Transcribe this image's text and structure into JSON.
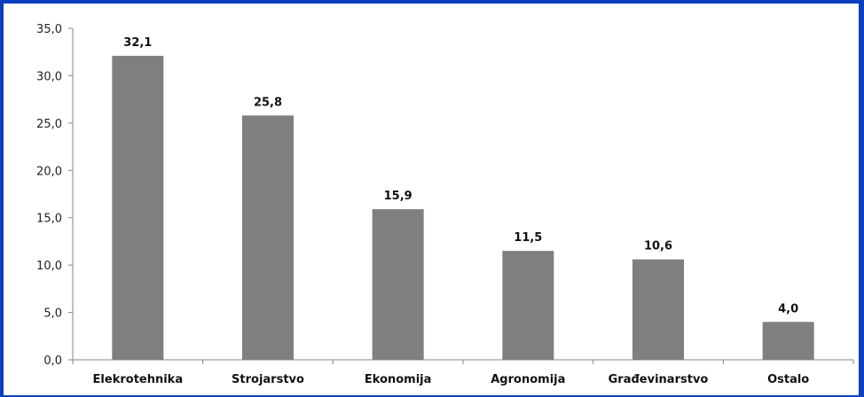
{
  "chart_data": {
    "type": "bar",
    "categories": [
      "Elekrotehnika",
      "Strojarstvo",
      "Ekonomija",
      "Agronomija",
      "Građevinarstvo",
      "Ostalo"
    ],
    "values": [
      32.1,
      25.8,
      15.9,
      11.5,
      10.6,
      4.0
    ],
    "data_labels": [
      "32,1",
      "25,8",
      "15,9",
      "11,5",
      "10,6",
      "4,0"
    ],
    "yticks": [
      "0,0",
      "5,0",
      "10,0",
      "15,0",
      "20,0",
      "25,0",
      "30,0",
      "35,0"
    ],
    "ylim": [
      0,
      35
    ],
    "ytick_step": 5,
    "grid": false,
    "legend": false,
    "title": "",
    "xlabel": "",
    "ylabel": "",
    "colors": {
      "bar": "#7f7f7f",
      "axis": "#868686",
      "border": "#0a3fbf",
      "background": "#ffffff"
    }
  }
}
